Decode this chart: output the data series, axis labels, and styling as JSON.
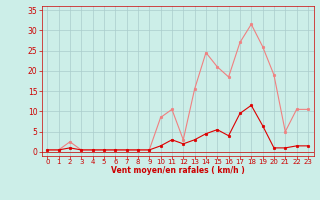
{
  "hours": [
    0,
    1,
    2,
    3,
    4,
    5,
    6,
    7,
    8,
    9,
    10,
    11,
    12,
    13,
    14,
    15,
    16,
    17,
    18,
    19,
    20,
    21,
    22,
    23
  ],
  "rafales": [
    0.5,
    0.5,
    2.5,
    0.5,
    0.5,
    0.5,
    0.5,
    0.5,
    0.5,
    0.5,
    8.5,
    10.5,
    3.0,
    15.5,
    24.5,
    21.0,
    18.5,
    27.0,
    31.5,
    26.0,
    19.0,
    5.0,
    10.5,
    10.5
  ],
  "moyen": [
    0.5,
    0.5,
    1.0,
    0.5,
    0.5,
    0.5,
    0.5,
    0.5,
    0.5,
    0.5,
    1.5,
    3.0,
    2.0,
    3.0,
    4.5,
    5.5,
    4.0,
    9.5,
    11.5,
    6.5,
    1.0,
    1.0,
    1.5,
    1.5
  ],
  "bg_color": "#cceee8",
  "grid_color": "#aacccc",
  "line_rafales_color": "#f08080",
  "line_moyen_color": "#dd0000",
  "marker_color_rafales": "#f08080",
  "marker_color_moyen": "#dd0000",
  "tick_color": "#cc0000",
  "xlabel": "Vent moyen/en rafales ( km/h )",
  "yticks": [
    0,
    5,
    10,
    15,
    20,
    25,
    30,
    35
  ],
  "ylim": [
    -1,
    36
  ],
  "xlim": [
    -0.5,
    23.5
  ]
}
